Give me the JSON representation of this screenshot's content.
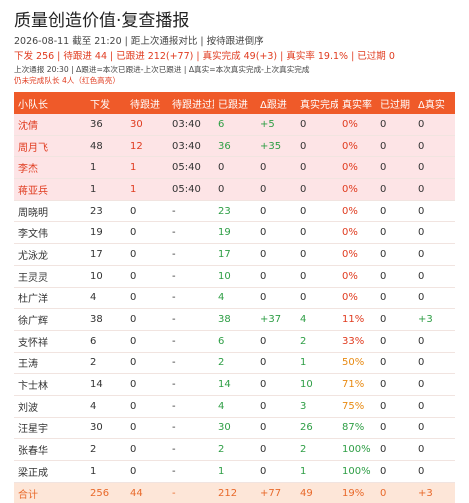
{
  "header": {
    "title": "质量创造价值·复查播报",
    "meta": "2026-08-11 截至 21:20 | 距上次通报对比 | 按待跟进倒序",
    "summary": "下发 256 | 待跟进 44 | 已跟进 212(+77) | 真实完成 49(+3) | 真实率 19.1% | 已过期 0",
    "notes": [
      "上次通报 20:30 | Δ跟进=本次已跟进-上次已跟进 | Δ真实=本次真实完成-上次真实完成",
      "仍未完成队长 4人（红色高亮）"
    ]
  },
  "table": {
    "columns": [
      "小队长",
      "下发",
      "待跟进",
      "待跟进过期",
      "已跟进",
      "Δ跟进",
      "真实完成",
      "真实率",
      "已过期",
      "Δ真实"
    ],
    "rows": [
      [
        "沈倩",
        "36",
        "30",
        "03:40",
        "6",
        "+5",
        "0",
        "0%",
        "0",
        "0"
      ],
      [
        "周月飞",
        "48",
        "12",
        "03:40",
        "36",
        "+35",
        "0",
        "0%",
        "0",
        "0"
      ],
      [
        "李杰",
        "1",
        "1",
        "05:40",
        "0",
        "0",
        "0",
        "0%",
        "0",
        "0"
      ],
      [
        "蒋亚兵",
        "1",
        "1",
        "05:40",
        "0",
        "0",
        "0",
        "0%",
        "0",
        "0"
      ],
      [
        "周晓明",
        "23",
        "0",
        "-",
        "23",
        "0",
        "0",
        "0%",
        "0",
        "0"
      ],
      [
        "李文伟",
        "19",
        "0",
        "-",
        "19",
        "0",
        "0",
        "0%",
        "0",
        "0"
      ],
      [
        "尤泳龙",
        "17",
        "0",
        "-",
        "17",
        "0",
        "0",
        "0%",
        "0",
        "0"
      ],
      [
        "王灵灵",
        "10",
        "0",
        "-",
        "10",
        "0",
        "0",
        "0%",
        "0",
        "0"
      ],
      [
        "杜广洋",
        "4",
        "0",
        "-",
        "4",
        "0",
        "0",
        "0%",
        "0",
        "0"
      ],
      [
        "徐广辉",
        "38",
        "0",
        "-",
        "38",
        "+37",
        "4",
        "11%",
        "0",
        "+3"
      ],
      [
        "支怀祥",
        "6",
        "0",
        "-",
        "6",
        "0",
        "2",
        "33%",
        "0",
        "0"
      ],
      [
        "王涛",
        "2",
        "0",
        "-",
        "2",
        "0",
        "1",
        "50%",
        "0",
        "0"
      ],
      [
        "卞士林",
        "14",
        "0",
        "-",
        "14",
        "0",
        "10",
        "71%",
        "0",
        "0"
      ],
      [
        "刘波",
        "4",
        "0",
        "-",
        "4",
        "0",
        "3",
        "75%",
        "0",
        "0"
      ],
      [
        "汪星宇",
        "30",
        "0",
        "-",
        "30",
        "0",
        "26",
        "87%",
        "0",
        "0"
      ],
      [
        "张春华",
        "2",
        "0",
        "-",
        "2",
        "0",
        "2",
        "100%",
        "0",
        "0"
      ],
      [
        "梁正成",
        "1",
        "0",
        "-",
        "1",
        "0",
        "1",
        "100%",
        "0",
        "0"
      ]
    ],
    "total": [
      "合计",
      "256",
      "44",
      "-",
      "212",
      "+77",
      "49",
      "19%",
      "0",
      "+3"
    ]
  }
}
